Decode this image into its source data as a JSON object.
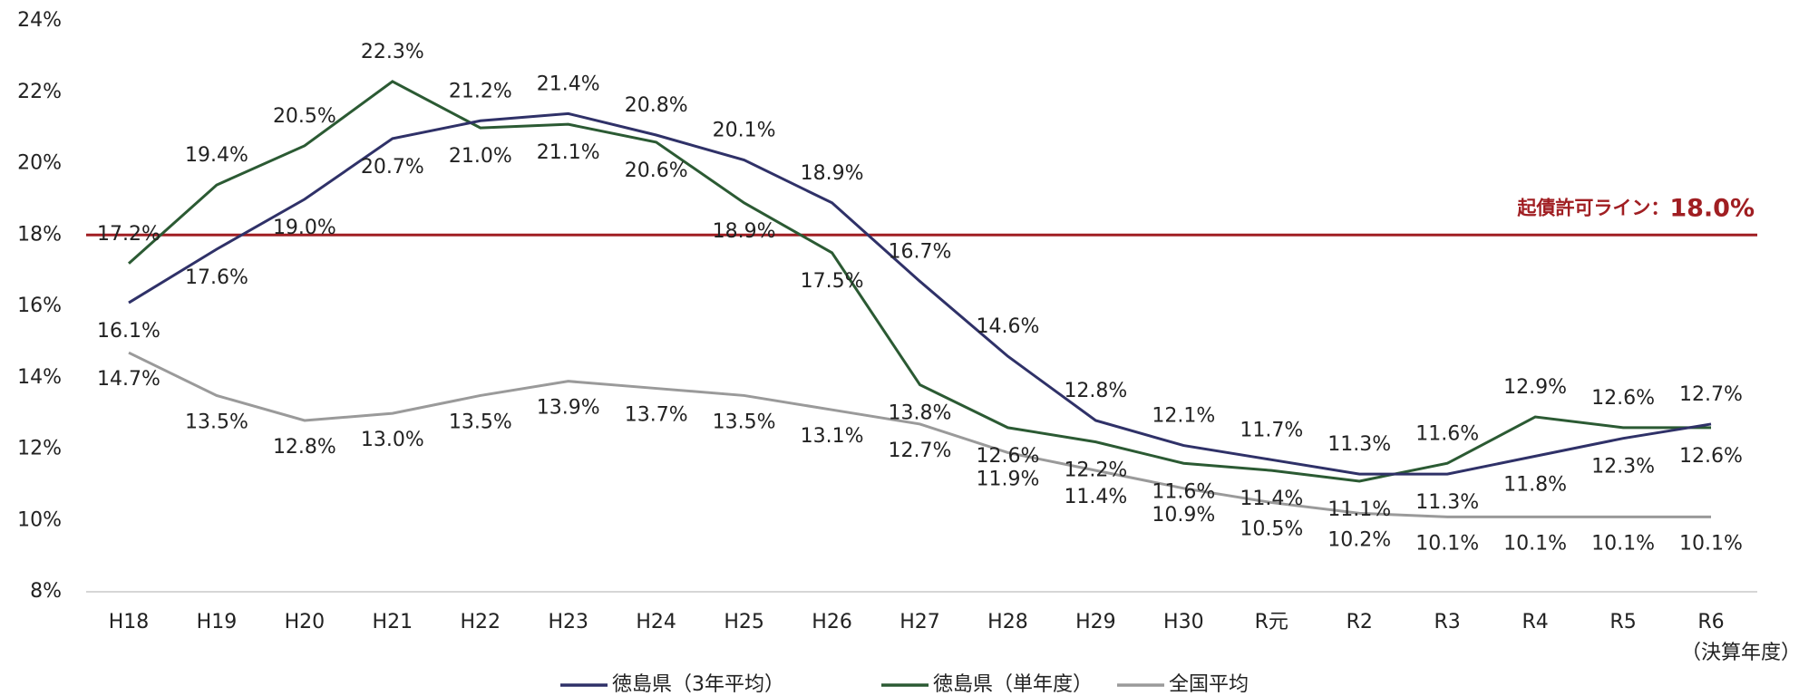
{
  "chart_data": {
    "type": "line",
    "categories": [
      "H18",
      "H19",
      "H20",
      "H21",
      "H22",
      "H23",
      "H24",
      "H25",
      "H26",
      "H27",
      "H28",
      "H29",
      "H30",
      "R元",
      "R2",
      "R3",
      "R4",
      "R5",
      "R6"
    ],
    "x_note": "（決算年度）",
    "series": [
      {
        "name": "徳島県（3年平均）",
        "color": "#2f3168",
        "values": [
          16.1,
          17.6,
          19.0,
          20.7,
          21.2,
          21.4,
          20.8,
          20.1,
          18.9,
          16.7,
          14.6,
          12.8,
          12.1,
          11.7,
          11.3,
          11.3,
          11.8,
          12.3,
          12.7
        ],
        "value_labels": [
          "16.1%",
          "17.6%",
          "19.0%",
          "20.7%",
          "21.2%",
          "21.4%",
          "20.8%",
          "20.1%",
          "18.9%",
          "16.7%",
          "14.6%",
          "12.8%",
          "12.1%",
          "11.7%",
          "11.3%",
          "11.3%",
          "11.8%",
          "12.3%",
          "12.7%"
        ]
      },
      {
        "name": "徳島県（単年度）",
        "color": "#2b5a33",
        "values": [
          17.2,
          19.4,
          20.5,
          22.3,
          21.0,
          21.1,
          20.6,
          18.9,
          17.5,
          13.8,
          12.6,
          12.2,
          11.6,
          11.4,
          11.1,
          11.6,
          12.9,
          12.6,
          12.6
        ],
        "value_labels": [
          "17.2%",
          "19.4%",
          "20.5%",
          "22.3%",
          "21.0%",
          "21.1%",
          "20.6%",
          "18.9%",
          "17.5%",
          "13.8%",
          "12.6%",
          "12.2%",
          "11.6%",
          "11.4%",
          "11.1%",
          "11.6%",
          "12.9%",
          "12.6%",
          "12.6%"
        ]
      },
      {
        "name": "全国平均",
        "color": "#9a9a9a",
        "values": [
          14.7,
          13.5,
          12.8,
          13.0,
          13.5,
          13.9,
          13.7,
          13.5,
          13.1,
          12.7,
          11.9,
          11.4,
          10.9,
          10.5,
          10.2,
          10.1,
          10.1,
          10.1,
          10.1
        ],
        "value_labels": [
          "14.7%",
          "13.5%",
          "12.8%",
          "13.0%",
          "13.5%",
          "13.9%",
          "13.7%",
          "13.5%",
          "13.1%",
          "12.7%",
          "11.9%",
          "11.4%",
          "10.9%",
          "10.5%",
          "10.2%",
          "10.1%",
          "10.1%",
          "10.1%",
          "10.1%"
        ]
      }
    ],
    "reference_line": {
      "label": "起債許可ライン：",
      "value": 18,
      "value_label": "18.0%",
      "color": "#a01e22"
    },
    "ylim": [
      8,
      24
    ],
    "yticks": [
      {
        "value": 8,
        "label": "8%"
      },
      {
        "value": 10,
        "label": "10%"
      },
      {
        "value": 12,
        "label": "12%"
      },
      {
        "value": 14,
        "label": "14%"
      },
      {
        "value": 16,
        "label": "16%"
      },
      {
        "value": 18,
        "label": "18%"
      },
      {
        "value": 20,
        "label": "20%"
      },
      {
        "value": 22,
        "label": "22%"
      },
      {
        "value": 24,
        "label": "24%"
      }
    ],
    "legend": "bottom"
  }
}
